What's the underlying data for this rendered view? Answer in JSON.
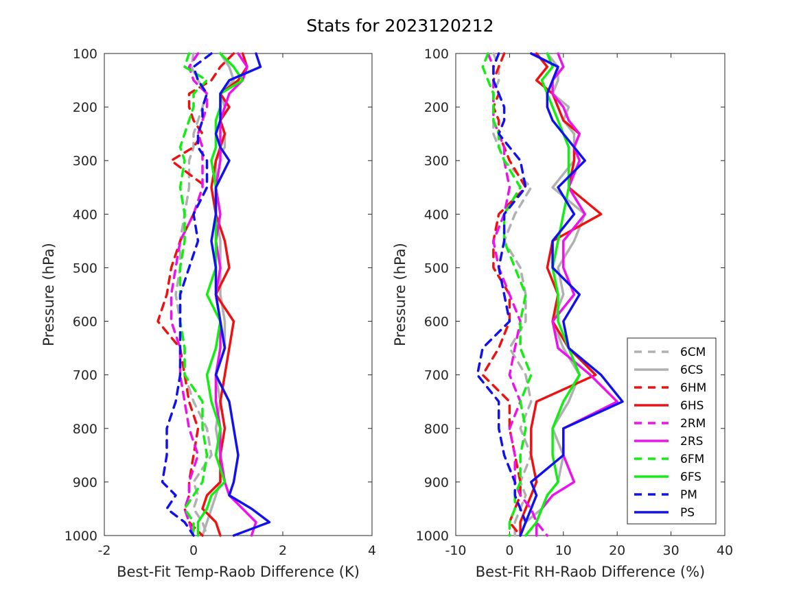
{
  "figure_title": "Stats for 2023120212",
  "chart_data": [
    {
      "type": "line",
      "xlabel": "Best-Fit Temp-Raob Difference (K)",
      "ylabel": "Pressure (hPa)",
      "xlim": [
        -2,
        4
      ],
      "ylim": [
        100,
        1000
      ],
      "y_reversed": true,
      "xticks": [
        "-2",
        "0",
        "2",
        "4"
      ],
      "yticks": [
        "100",
        "200",
        "300",
        "400",
        "500",
        "600",
        "700",
        "800",
        "900",
        "1000"
      ],
      "grid": false,
      "pressure": [
        100,
        125,
        150,
        175,
        200,
        225,
        250,
        275,
        300,
        350,
        400,
        450,
        500,
        550,
        600,
        650,
        700,
        750,
        800,
        850,
        900,
        925,
        950,
        975,
        1000
      ],
      "series": [
        {
          "name": "6CM",
          "color": "#b0b0b0",
          "dash": true,
          "values": [
            0.0,
            -0.05,
            0.1,
            0.3,
            0.2,
            0.1,
            0.0,
            0.0,
            -0.1,
            -0.1,
            -0.2,
            -0.3,
            -0.3,
            -0.4,
            -0.3,
            -0.2,
            -0.2,
            0.0,
            0.3,
            0.4,
            0.0,
            0.1,
            0.0,
            0.2,
            0.3
          ]
        },
        {
          "name": "6CS",
          "color": "#b0b0b0",
          "dash": false,
          "values": [
            0.6,
            0.8,
            0.9,
            0.6,
            0.7,
            0.6,
            0.7,
            0.7,
            0.5,
            0.5,
            0.5,
            0.6,
            0.6,
            0.6,
            0.7,
            0.7,
            0.5,
            0.6,
            0.5,
            0.6,
            0.6,
            0.5,
            0.4,
            0.3,
            0.2
          ]
        },
        {
          "name": "6HM",
          "color": "#ee1111",
          "dash": true,
          "values": [
            0.9,
            0.6,
            0.4,
            -0.1,
            -0.1,
            0.0,
            0.2,
            0.0,
            -0.5,
            0.3,
            0.0,
            -0.3,
            -0.5,
            -0.6,
            -0.8,
            -0.3,
            -0.2,
            -0.1,
            0.1,
            0.0,
            -0.1,
            -0.1,
            -0.2,
            -0.1,
            0.2
          ]
        },
        {
          "name": "6HS",
          "color": "#ee1111",
          "dash": false,
          "values": [
            1.1,
            1.2,
            1.0,
            0.6,
            0.8,
            0.6,
            0.7,
            0.6,
            0.5,
            0.4,
            0.5,
            0.7,
            0.8,
            0.5,
            0.9,
            0.8,
            0.7,
            0.6,
            0.7,
            0.6,
            0.6,
            0.3,
            0.2,
            0.5,
            0.6
          ]
        },
        {
          "name": "2RM",
          "color": "#ee11ee",
          "dash": true,
          "values": [
            0.1,
            -0.1,
            0.0,
            0.3,
            0.3,
            0.2,
            0.1,
            0.2,
            0.2,
            0.2,
            0.0,
            -0.3,
            -0.4,
            -0.5,
            -0.5,
            -0.3,
            -0.3,
            -0.2,
            -0.1,
            0.1,
            -0.1,
            -0.1,
            -0.2,
            -0.1,
            0.0
          ]
        },
        {
          "name": "2RS",
          "color": "#ee11ee",
          "dash": false,
          "values": [
            1.0,
            1.2,
            1.1,
            0.8,
            0.7,
            0.6,
            0.6,
            0.6,
            0.6,
            0.5,
            0.6,
            0.5,
            0.6,
            0.5,
            0.6,
            0.6,
            0.5,
            0.5,
            0.6,
            0.6,
            0.7,
            0.8,
            1.1,
            1.4,
            1.3
          ]
        },
        {
          "name": "6FM",
          "color": "#11ee11",
          "dash": true,
          "values": [
            -0.1,
            -0.2,
            0.3,
            0.0,
            0.0,
            -0.1,
            -0.2,
            -0.3,
            -0.2,
            -0.3,
            -0.2,
            -0.2,
            -0.3,
            -0.3,
            -0.3,
            -0.2,
            -0.2,
            0.2,
            0.2,
            0.3,
            0.2,
            0.0,
            -0.2,
            0.0,
            0.0
          ]
        },
        {
          "name": "6FS",
          "color": "#11ee11",
          "dash": false,
          "values": [
            0.6,
            0.9,
            1.1,
            0.6,
            0.6,
            0.5,
            0.5,
            0.5,
            0.4,
            0.5,
            0.5,
            0.5,
            0.5,
            0.3,
            0.6,
            0.5,
            0.3,
            0.4,
            0.6,
            0.5,
            0.7,
            0.4,
            0.3,
            0.1,
            0.1
          ]
        },
        {
          "name": "PM",
          "color": "#1111ee",
          "dash": true,
          "values": [
            0.4,
            0.0,
            0.1,
            0.3,
            0.2,
            0.2,
            0.1,
            0.1,
            0.3,
            0.3,
            0.0,
            0.1,
            -0.1,
            -0.3,
            -0.3,
            -0.3,
            -0.3,
            -0.4,
            -0.6,
            -0.6,
            -0.7,
            -0.4,
            -0.6,
            -0.2,
            0.0
          ]
        },
        {
          "name": "PS",
          "color": "#1111ee",
          "dash": false,
          "values": [
            1.4,
            1.5,
            0.8,
            0.6,
            0.6,
            0.6,
            0.5,
            0.6,
            0.8,
            0.5,
            0.5,
            0.4,
            0.5,
            0.5,
            0.6,
            0.7,
            0.5,
            0.8,
            0.9,
            1.0,
            0.9,
            0.8,
            1.3,
            1.7,
            0.9
          ]
        }
      ]
    },
    {
      "type": "line",
      "xlabel": "Best-Fit RH-Raob Difference (%)",
      "ylabel": "Pressure (hPa)",
      "xlim": [
        -10,
        40
      ],
      "ylim": [
        100,
        1000
      ],
      "y_reversed": true,
      "xticks": [
        "-10",
        "0",
        "10",
        "20",
        "30",
        "40"
      ],
      "yticks": [
        "100",
        "200",
        "300",
        "400",
        "500",
        "600",
        "700",
        "800",
        "900",
        "1000"
      ],
      "grid": false,
      "legend": "bottom-right",
      "pressure": [
        100,
        125,
        150,
        175,
        200,
        225,
        250,
        275,
        300,
        350,
        400,
        450,
        500,
        550,
        600,
        650,
        700,
        750,
        800,
        850,
        900,
        925,
        950,
        975,
        1000
      ],
      "series": [
        {
          "name": "6CM",
          "color": "#b0b0b0",
          "dash": true,
          "values": [
            -3,
            -2,
            -2,
            -3,
            -3,
            -3,
            -3,
            -2,
            -1,
            4,
            1,
            -1,
            2,
            3,
            3,
            0,
            3,
            4,
            2,
            4,
            2,
            3,
            2,
            1,
            1
          ]
        },
        {
          "name": "6CS",
          "color": "#b0b0b0",
          "dash": false,
          "values": [
            7,
            9,
            9,
            8,
            11,
            10,
            12,
            12,
            12,
            8,
            14,
            12,
            9,
            10,
            8,
            10,
            13,
            11,
            8,
            10,
            9,
            7,
            6,
            3,
            2
          ]
        },
        {
          "name": "6HM",
          "color": "#ee1111",
          "dash": true,
          "values": [
            -1,
            -2,
            -3,
            -2,
            -3,
            -2,
            -2,
            -1,
            0,
            3,
            -2,
            -3,
            -3,
            0,
            0,
            -2,
            -5,
            0,
            0,
            1,
            2,
            2,
            1,
            0,
            2
          ]
        },
        {
          "name": "6HS",
          "color": "#ee1111",
          "dash": false,
          "values": [
            5,
            7,
            5,
            8,
            9,
            10,
            13,
            12,
            12,
            11,
            17,
            8,
            7,
            9,
            8,
            11,
            16,
            5,
            4,
            4,
            5,
            4,
            3,
            2,
            2
          ]
        },
        {
          "name": "2RM",
          "color": "#ee11ee",
          "dash": true,
          "values": [
            -4,
            -3,
            -3,
            -3,
            -3,
            -3,
            -2,
            -1,
            -1,
            0,
            -1,
            -3,
            -2,
            0,
            2,
            1,
            0,
            2,
            0,
            1,
            1,
            2,
            4,
            5,
            7
          ]
        },
        {
          "name": "2RS",
          "color": "#ee11ee",
          "dash": false,
          "values": [
            9,
            10,
            8,
            8,
            10,
            11,
            13,
            12,
            13,
            11,
            14,
            10,
            10,
            12,
            8,
            9,
            15,
            20,
            10,
            10,
            12,
            8,
            6,
            5,
            5
          ]
        },
        {
          "name": "6FM",
          "color": "#11ee11",
          "dash": true,
          "values": [
            -4,
            -5,
            -4,
            -3,
            -3,
            -3,
            -2,
            -2,
            -1,
            2,
            -1,
            -1,
            1,
            3,
            2,
            2,
            4,
            2,
            3,
            2,
            2,
            1,
            1,
            0,
            0
          ]
        },
        {
          "name": "6FS",
          "color": "#11ee11",
          "dash": false,
          "values": [
            7,
            8,
            6,
            7,
            8,
            9,
            10,
            11,
            11,
            11,
            10,
            9,
            8,
            9,
            9,
            11,
            13,
            10,
            8,
            8,
            9,
            7,
            6,
            5,
            3
          ]
        },
        {
          "name": "PM",
          "color": "#1111ee",
          "dash": true,
          "values": [
            -2,
            -3,
            -3,
            -2,
            -1,
            -1,
            -2,
            0,
            2,
            3,
            -1,
            -1,
            -2,
            -1,
            0,
            -5,
            -6,
            -2,
            -2,
            -1,
            1,
            1,
            2,
            3,
            2
          ]
        },
        {
          "name": "PS",
          "color": "#1111ee",
          "dash": false,
          "values": [
            4,
            9,
            8,
            7,
            7,
            8,
            10,
            12,
            14,
            9,
            12,
            8,
            8,
            13,
            10,
            11,
            17,
            21,
            10,
            10,
            4,
            5,
            4,
            3,
            2
          ]
        }
      ]
    }
  ]
}
